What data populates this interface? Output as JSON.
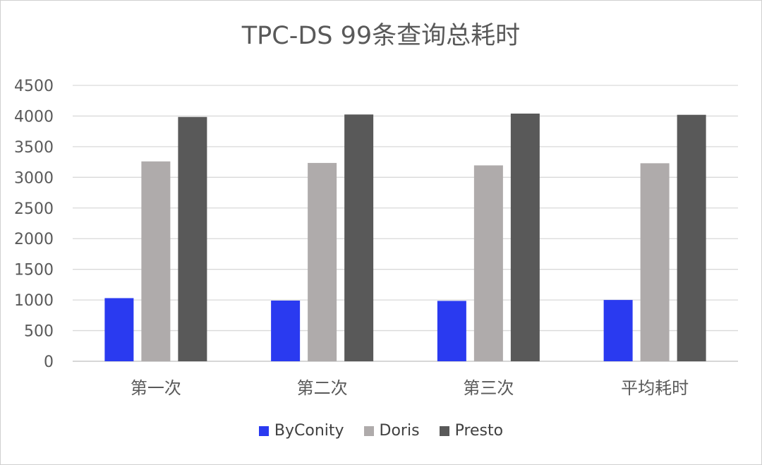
{
  "chart_data": {
    "type": "bar",
    "title": "TPC-DS 99条查询总耗时",
    "categories": [
      "第一次",
      "第二次",
      "第三次",
      "平均耗时"
    ],
    "series": [
      {
        "name": "ByConity",
        "color": "#2a3af0",
        "values": [
          1030,
          990,
          985,
          1000
        ]
      },
      {
        "name": "Doris",
        "color": "#afabab",
        "values": [
          3260,
          3235,
          3195,
          3230
        ]
      },
      {
        "name": "Presto",
        "color": "#595959",
        "values": [
          3985,
          4025,
          4040,
          4020
        ]
      }
    ],
    "ylim": [
      0,
      4500
    ],
    "yticks": [
      "0",
      "500",
      "1000",
      "1500",
      "2000",
      "2500",
      "3000",
      "3500",
      "4000",
      "4500"
    ],
    "grid": true,
    "legend_position": "bottom"
  }
}
